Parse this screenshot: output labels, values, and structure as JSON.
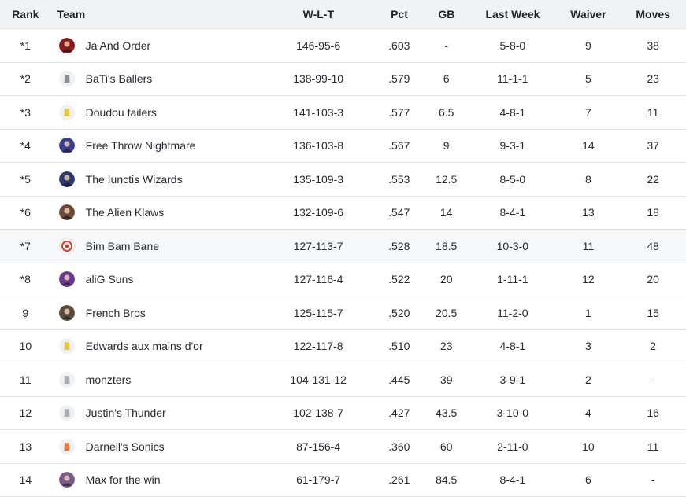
{
  "headers": {
    "rank": "Rank",
    "team": "Team",
    "wlt": "W-L-T",
    "pct": "Pct",
    "gb": "GB",
    "last_week": "Last Week",
    "waiver": "Waiver",
    "moves": "Moves"
  },
  "rows": [
    {
      "rank": "*1",
      "team": "Ja And Order",
      "wlt": "146-95-6",
      "pct": ".603",
      "gb": "-",
      "last_week": "5-8-0",
      "waiver": "9",
      "moves": "38",
      "logo": "team-logo-dark-icon",
      "logo_color": "#8b1a1a"
    },
    {
      "rank": "*2",
      "team": "BaTi's Ballers",
      "wlt": "138-99-10",
      "pct": ".579",
      "gb": "6",
      "last_week": "11-1-1",
      "waiver": "5",
      "moves": "23",
      "logo": "jersey-gray-icon",
      "logo_color": "#8a8f96"
    },
    {
      "rank": "*3",
      "team": "Doudou failers",
      "wlt": "141-103-3",
      "pct": ".577",
      "gb": "6.5",
      "last_week": "4-8-1",
      "waiver": "7",
      "moves": "11",
      "logo": "jersey-yellow-icon",
      "logo_color": "#e8c53a"
    },
    {
      "rank": "*4",
      "team": "Free Throw Nightmare",
      "wlt": "136-103-8",
      "pct": ".567",
      "gb": "9",
      "last_week": "9-3-1",
      "waiver": "14",
      "moves": "37",
      "logo": "team-logo-blue-icon",
      "logo_color": "#3b3f8f"
    },
    {
      "rank": "*5",
      "team": "The Iunctis Wizards",
      "wlt": "135-109-3",
      "pct": ".553",
      "gb": "12.5",
      "last_week": "8-5-0",
      "waiver": "8",
      "moves": "22",
      "logo": "wizard-logo-icon",
      "logo_color": "#2b3a6b"
    },
    {
      "rank": "*6",
      "team": "The Alien Klaws",
      "wlt": "132-109-6",
      "pct": ".547",
      "gb": "14",
      "last_week": "8-4-1",
      "waiver": "13",
      "moves": "18",
      "logo": "player-photo-icon",
      "logo_color": "#6b4a3a"
    },
    {
      "rank": "*7",
      "team": "Bim Bam Bane",
      "wlt": "127-113-7",
      "pct": ".528",
      "gb": "18.5",
      "last_week": "10-3-0",
      "waiver": "11",
      "moves": "48",
      "logo": "target-logo-icon",
      "logo_color": "#d83a2a"
    },
    {
      "rank": "*8",
      "team": "aliG Suns",
      "wlt": "127-116-4",
      "pct": ".522",
      "gb": "20",
      "last_week": "1-11-1",
      "waiver": "12",
      "moves": "20",
      "logo": "suns-logo-icon",
      "logo_color": "#6a3a8a"
    },
    {
      "rank": "9",
      "team": "French Bros",
      "wlt": "125-115-7",
      "pct": ".520",
      "gb": "20.5",
      "last_week": "11-2-0",
      "waiver": "1",
      "moves": "15",
      "logo": "player-photo-icon",
      "logo_color": "#5a4a3a"
    },
    {
      "rank": "10",
      "team": "Edwards aux mains d'or",
      "wlt": "122-117-8",
      "pct": ".510",
      "gb": "23",
      "last_week": "4-8-1",
      "waiver": "3",
      "moves": "2",
      "logo": "jersey-yellow-icon",
      "logo_color": "#e8c53a"
    },
    {
      "rank": "11",
      "team": "monzters",
      "wlt": "104-131-12",
      "pct": ".445",
      "gb": "39",
      "last_week": "3-9-1",
      "waiver": "2",
      "moves": "-",
      "logo": "jersey-gray-icon",
      "logo_color": "#a7acb3"
    },
    {
      "rank": "12",
      "team": "Justin's Thunder",
      "wlt": "102-138-7",
      "pct": ".427",
      "gb": "43.5",
      "last_week": "3-10-0",
      "waiver": "4",
      "moves": "16",
      "logo": "jersey-gray-icon",
      "logo_color": "#a7acb3"
    },
    {
      "rank": "13",
      "team": "Darnell's Sonics",
      "wlt": "87-156-4",
      "pct": ".360",
      "gb": "60",
      "last_week": "2-11-0",
      "waiver": "10",
      "moves": "11",
      "logo": "jersey-teal-icon",
      "logo_color": "#e8793a"
    },
    {
      "rank": "14",
      "team": "Max for the win",
      "wlt": "61-179-7",
      "pct": ".261",
      "gb": "84.5",
      "last_week": "8-4-1",
      "waiver": "6",
      "moves": "-",
      "logo": "player-photo-icon",
      "logo_color": "#7a5a8a"
    }
  ],
  "highlighted_row": 7
}
